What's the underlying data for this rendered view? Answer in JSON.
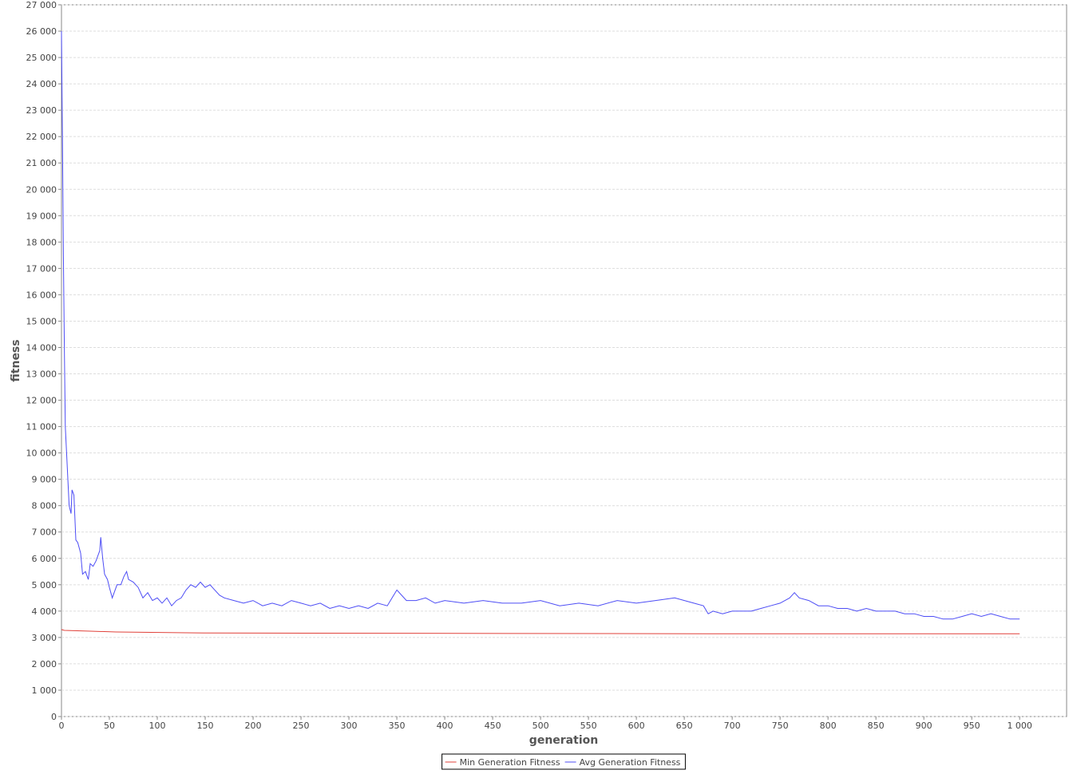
{
  "chart_data": {
    "type": "line",
    "x_label": "generation",
    "y_label": "fitness",
    "xlim": [
      0,
      1049
    ],
    "ylim": [
      0,
      27000
    ],
    "xticks": [
      0,
      50,
      100,
      150,
      200,
      250,
      300,
      350,
      400,
      450,
      500,
      550,
      600,
      650,
      700,
      750,
      800,
      850,
      900,
      950,
      {
        "value": 1000,
        "label": "1 000"
      }
    ],
    "yticks": [
      0,
      {
        "value": 1000,
        "label": "1 000"
      },
      {
        "value": 2000,
        "label": "2 000"
      },
      {
        "value": 3000,
        "label": "3 000"
      },
      {
        "value": 4000,
        "label": "4 000"
      },
      {
        "value": 5000,
        "label": "5 000"
      },
      {
        "value": 6000,
        "label": "6 000"
      },
      {
        "value": 7000,
        "label": "7 000"
      },
      {
        "value": 8000,
        "label": "8 000"
      },
      {
        "value": 9000,
        "label": "9 000"
      },
      {
        "value": 10000,
        "label": "10 000"
      },
      {
        "value": 11000,
        "label": "11 000"
      },
      {
        "value": 12000,
        "label": "12 000"
      },
      {
        "value": 13000,
        "label": "13 000"
      },
      {
        "value": 14000,
        "label": "14 000"
      },
      {
        "value": 15000,
        "label": "15 000"
      },
      {
        "value": 16000,
        "label": "16 000"
      },
      {
        "value": 17000,
        "label": "17 000"
      },
      {
        "value": 18000,
        "label": "18 000"
      },
      {
        "value": 19000,
        "label": "19 000"
      },
      {
        "value": 20000,
        "label": "20 000"
      },
      {
        "value": 21000,
        "label": "21 000"
      },
      {
        "value": 22000,
        "label": "22 000"
      },
      {
        "value": 23000,
        "label": "23 000"
      },
      {
        "value": 24000,
        "label": "24 000"
      },
      {
        "value": 25000,
        "label": "25 000"
      },
      {
        "value": 26000,
        "label": "26 000"
      },
      {
        "value": 27000,
        "label": "27 000"
      }
    ],
    "grid": true,
    "series": [
      {
        "name": "Min Generation Fitness",
        "color": "#e0413a",
        "x": [
          0,
          3,
          30,
          57,
          150,
          705,
          1000
        ],
        "values": [
          3300,
          3270,
          3240,
          3210,
          3170,
          3140,
          3140
        ]
      },
      {
        "name": "Avg Generation Fitness",
        "color": "#4d4df5",
        "x": [
          0,
          1,
          2,
          3,
          4,
          6,
          8,
          10,
          11,
          13,
          15,
          17,
          20,
          22,
          25,
          28,
          30,
          33,
          36,
          40,
          41,
          43,
          45,
          48,
          50,
          53,
          55,
          58,
          62,
          65,
          68,
          70,
          75,
          80,
          85,
          90,
          95,
          100,
          105,
          110,
          115,
          120,
          125,
          130,
          135,
          140,
          145,
          150,
          155,
          160,
          165,
          170,
          180,
          190,
          200,
          210,
          220,
          230,
          240,
          250,
          260,
          270,
          280,
          290,
          300,
          310,
          320,
          330,
          340,
          345,
          350,
          355,
          360,
          370,
          380,
          390,
          400,
          420,
          440,
          460,
          480,
          500,
          520,
          540,
          560,
          580,
          600,
          620,
          640,
          660,
          670,
          675,
          680,
          690,
          700,
          710,
          720,
          730,
          740,
          750,
          760,
          765,
          770,
          780,
          790,
          800,
          810,
          820,
          830,
          840,
          850,
          860,
          870,
          880,
          890,
          900,
          910,
          920,
          930,
          940,
          950,
          960,
          970,
          980,
          990,
          1000
        ],
        "values": [
          26000,
          22000,
          17500,
          14000,
          11000,
          9500,
          8000,
          7700,
          8600,
          8400,
          6700,
          6600,
          6200,
          5400,
          5500,
          5200,
          5800,
          5700,
          5900,
          6300,
          6800,
          6000,
          5400,
          5200,
          4900,
          4500,
          4700,
          5000,
          5000,
          5300,
          5500,
          5200,
          5100,
          4900,
          4500,
          4700,
          4400,
          4500,
          4300,
          4500,
          4200,
          4400,
          4500,
          4800,
          5000,
          4900,
          5100,
          4900,
          5000,
          4800,
          4600,
          4500,
          4400,
          4300,
          4400,
          4200,
          4300,
          4200,
          4400,
          4300,
          4200,
          4300,
          4100,
          4200,
          4100,
          4200,
          4100,
          4300,
          4200,
          4500,
          4800,
          4600,
          4400,
          4400,
          4500,
          4300,
          4400,
          4300,
          4400,
          4300,
          4300,
          4400,
          4200,
          4300,
          4200,
          4400,
          4300,
          4400,
          4500,
          4300,
          4200,
          3900,
          4000,
          3900,
          4000,
          4000,
          4000,
          4100,
          4200,
          4300,
          4500,
          4700,
          4500,
          4400,
          4200,
          4200,
          4100,
          4100,
          4000,
          4100,
          4000,
          4000,
          4000,
          3900,
          3900,
          3800,
          3800,
          3700,
          3700,
          3800,
          3900,
          3800,
          3900,
          3800,
          3700,
          3700
        ]
      }
    ]
  }
}
